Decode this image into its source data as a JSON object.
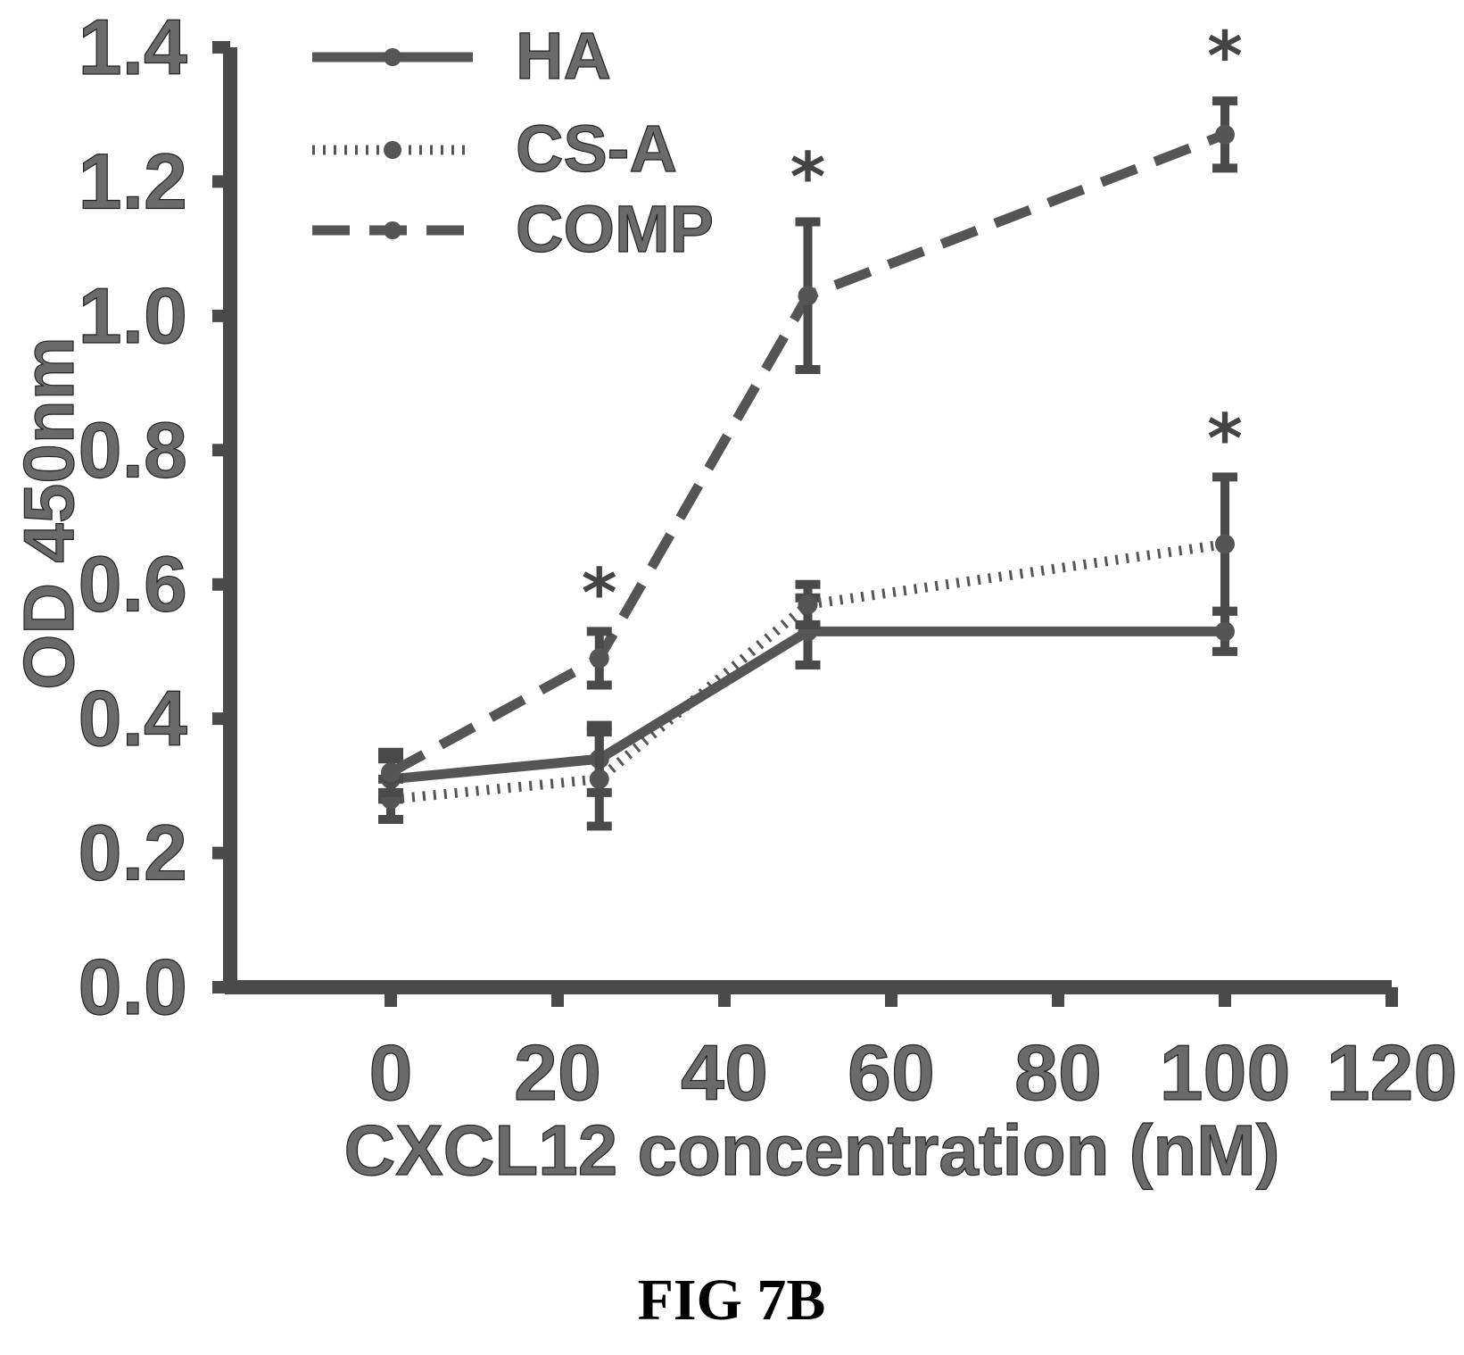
{
  "chart_data": {
    "type": "line",
    "xlabel": "CXCL12 concentration (nM)",
    "ylabel": "OD 450nm",
    "xlim": [
      -10,
      120
    ],
    "ylim": [
      0.0,
      1.4
    ],
    "xticks": [
      "0",
      "20",
      "40",
      "60",
      "80",
      "100",
      "120"
    ],
    "yticks": [
      "0.0",
      "0.2",
      "0.4",
      "0.6",
      "0.8",
      "1.0",
      "1.2",
      "1.4"
    ],
    "legend_position": "top-left",
    "grid": false,
    "series": [
      {
        "name": "HA",
        "style": "solid",
        "x": [
          0,
          25,
          50,
          100
        ],
        "y": [
          0.31,
          0.34,
          0.53,
          0.53
        ],
        "err": [
          0.03,
          0.05,
          0.05,
          0.03
        ]
      },
      {
        "name": "CS-A",
        "style": "dotted",
        "x": [
          0,
          25,
          50,
          100
        ],
        "y": [
          0.28,
          0.31,
          0.57,
          0.66
        ],
        "err": [
          0.03,
          0.07,
          0.03,
          0.1
        ]
      },
      {
        "name": "COMP",
        "style": "dashed",
        "x": [
          0,
          25,
          50,
          100
        ],
        "y": [
          0.32,
          0.49,
          1.03,
          1.27
        ],
        "err": [
          0.03,
          0.04,
          0.11,
          0.05
        ]
      }
    ],
    "annotations": [
      {
        "text": "*",
        "x": 25,
        "y": 0.6
      },
      {
        "text": "*",
        "x": 50,
        "y": 1.22
      },
      {
        "text": "*",
        "x": 100,
        "y": 1.4
      },
      {
        "text": "*",
        "x": 100,
        "y": 0.83
      }
    ]
  },
  "caption": "FIG 7B"
}
